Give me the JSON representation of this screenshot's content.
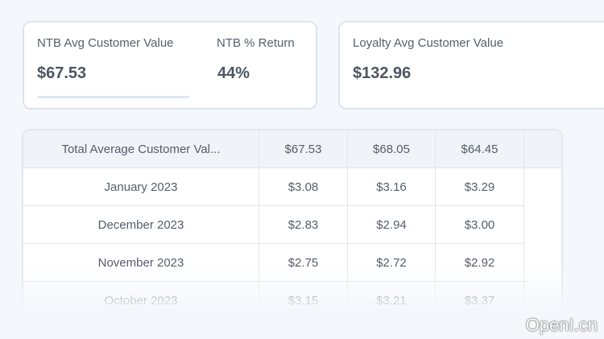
{
  "cards": [
    {
      "metrics": [
        {
          "label": "NTB Avg Customer Value",
          "value": "$67.53"
        },
        {
          "label": "NTB % Return",
          "value": "44%"
        }
      ]
    },
    {
      "metrics": [
        {
          "label": "Loyalty Avg Customer Value",
          "value": "$132.96"
        }
      ]
    }
  ],
  "table": {
    "rows": [
      [
        "Total Average Customer Val...",
        "$67.53",
        "$68.05",
        "$64.45"
      ],
      [
        "January 2023",
        "$3.08",
        "$3.16",
        "$3.29"
      ],
      [
        "December 2023",
        "$2.83",
        "$2.94",
        "$3.00"
      ],
      [
        "November 2023",
        "$2.75",
        "$2.72",
        "$2.92"
      ],
      [
        "October 2023",
        "$3.15",
        "$3.21",
        "$3.37"
      ]
    ]
  },
  "watermark": "OpenI.cn"
}
